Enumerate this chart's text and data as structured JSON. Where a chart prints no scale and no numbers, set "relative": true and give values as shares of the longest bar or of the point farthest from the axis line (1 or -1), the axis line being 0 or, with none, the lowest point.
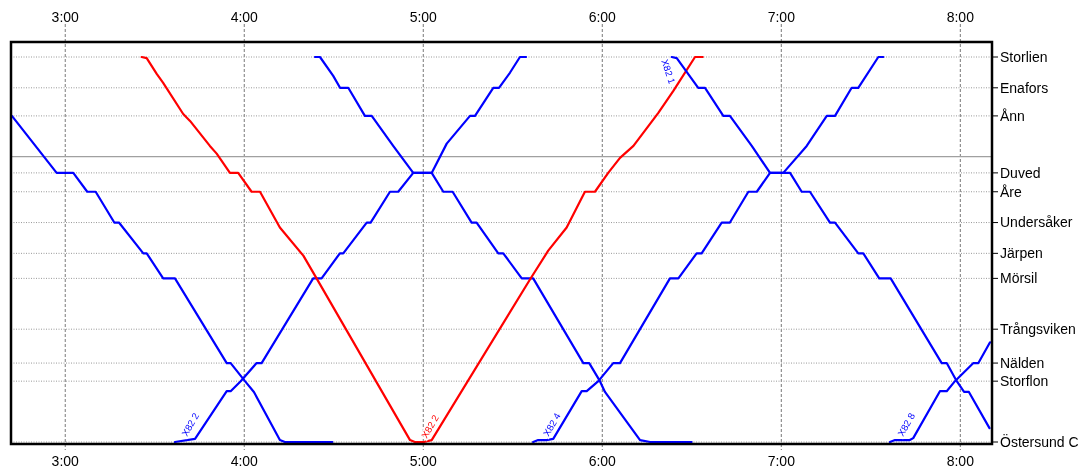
{
  "chart_data": {
    "type": "line",
    "relative": true,
    "xlim": [
      2.697,
      8.177
    ],
    "xticks": [
      {
        "value": 3,
        "label": "3:00"
      },
      {
        "value": 4,
        "label": "4:00"
      },
      {
        "value": 5,
        "label": "5:00"
      },
      {
        "value": 6,
        "label": "6:00"
      },
      {
        "value": 7,
        "label": "7:00"
      },
      {
        "value": 8,
        "label": "8:00"
      }
    ],
    "x2lim": [
      2.697,
      8.177
    ],
    "x2ticks": [
      {
        "value": 3,
        "label": "3:00"
      },
      {
        "value": 4,
        "label": "4:00"
      },
      {
        "value": 5,
        "label": "5:00"
      },
      {
        "value": 6,
        "label": "6:00"
      },
      {
        "value": 7,
        "label": "7:00"
      },
      {
        "value": 8,
        "label": "8:00"
      }
    ],
    "grid": "x",
    "ref_lines": [
      {
        "axis": "y",
        "value": 0,
        "label": "Östersund C",
        "line_style": "dotted",
        "color": "#999999"
      },
      {
        "axis": "y",
        "value": 0.158,
        "label": "Storflon",
        "line_style": "dotted",
        "color": "#999999"
      },
      {
        "axis": "y",
        "value": 0.205,
        "label": "Nälden",
        "line_style": "dotted",
        "color": "#999999"
      },
      {
        "axis": "y",
        "value": 0.293,
        "label": "Trångsviken",
        "line_style": "dotted",
        "color": "#999999"
      },
      {
        "axis": "y",
        "value": 0.425,
        "label": "Mörsil",
        "line_style": "dotted",
        "color": "#999999"
      },
      {
        "axis": "y",
        "value": 0.49,
        "label": "Järpen",
        "line_style": "dotted",
        "color": "#999999"
      },
      {
        "axis": "y",
        "value": 0.57,
        "label": "Undersåker",
        "line_style": "dotted",
        "color": "#999999"
      },
      {
        "axis": "y",
        "value": 0.65,
        "label": "Åre",
        "line_style": "dotted",
        "color": "#999999"
      },
      {
        "axis": "y",
        "value": 0.699,
        "label": "Duved",
        "line_style": "dotted",
        "color": "#999999"
      },
      {
        "axis": "y",
        "value": 0.741,
        "color": "#a0a0a0",
        "line_style": "solid"
      },
      {
        "axis": "y",
        "value": 0.847,
        "label": "Ånn",
        "line_style": "dotted",
        "color": "#999999"
      },
      {
        "axis": "y",
        "value": 0.92,
        "label": "Enafors",
        "line_style": "dotted",
        "color": "#999999"
      },
      {
        "axis": "y",
        "value": 1,
        "label": "Storlien",
        "line_style": "dotted",
        "color": "#999999"
      }
    ],
    "series": [
      {
        "color": "#0000ff",
        "x": [
          2.702,
          2.952,
          3.045,
          3.123,
          3.17,
          3.274,
          3.3,
          3.436,
          3.455,
          3.547,
          3.613,
          3.902,
          3.924,
          4.004,
          4.054,
          4.199,
          4.227,
          4.492
        ],
        "values": [
          0.847,
          0.699,
          0.699,
          0.65,
          0.65,
          0.57,
          0.57,
          0.49,
          0.49,
          0.425,
          0.425,
          0.205,
          0.205,
          0.158,
          0.13,
          0.005,
          0,
          0
        ]
      },
      {
        "color": "#0000ff",
        "x": [
          3.613,
          3.725,
          3.902,
          3.924,
          3.98,
          4.069,
          4.097,
          4.385,
          4.432,
          4.534,
          4.553,
          4.684,
          4.706,
          4.814,
          4.86,
          4.944,
          5.047,
          5.131,
          5.261,
          5.289,
          5.391,
          5.423,
          5.484,
          5.54,
          5.574
        ],
        "values": [
          0,
          0.008,
          0.132,
          0.132,
          0.158,
          0.205,
          0.205,
          0.425,
          0.425,
          0.49,
          0.49,
          0.57,
          0.57,
          0.65,
          0.65,
          0.699,
          0.699,
          0.775,
          0.847,
          0.847,
          0.92,
          0.92,
          0.959,
          1,
          1
        ]
      },
      {
        "color": "#0000ff",
        "x": [
          4.395,
          4.423,
          4.497,
          4.535,
          4.581,
          4.674,
          4.712,
          4.832,
          4.944,
          5.047,
          5.112,
          5.164,
          5.27,
          5.298,
          5.419,
          5.447,
          5.55,
          5.614,
          5.894,
          5.927,
          5.987,
          6.015,
          6.211,
          6.267,
          6.499
        ],
        "values": [
          1,
          1,
          0.951,
          0.92,
          0.92,
          0.847,
          0.847,
          0.769,
          0.699,
          0.699,
          0.65,
          0.65,
          0.57,
          0.57,
          0.49,
          0.49,
          0.425,
          0.425,
          0.205,
          0.205,
          0.158,
          0.13,
          0.005,
          0,
          0
        ]
      },
      {
        "color": "#ff0000",
        "x": [
          3.427,
          3.455,
          3.511,
          3.547,
          3.659,
          3.697,
          3.808,
          3.846,
          3.92,
          3.966,
          4.041,
          4.088,
          4.199,
          4.33,
          4.404,
          4.926,
          4.953,
          5.004,
          5.047,
          5.596,
          5.698,
          5.801,
          5.903,
          5.959,
          6.033,
          6.099,
          6.174,
          6.313,
          6.397,
          6.518,
          6.561
        ],
        "values": [
          1,
          0.997,
          0.956,
          0.933,
          0.852,
          0.834,
          0.769,
          0.749,
          0.699,
          0.699,
          0.65,
          0.65,
          0.557,
          0.484,
          0.425,
          0.005,
          0,
          0,
          0.005,
          0.422,
          0.497,
          0.557,
          0.65,
          0.65,
          0.699,
          0.738,
          0.769,
          0.855,
          0.912,
          1,
          1
        ]
      },
      {
        "color": "#0000ff",
        "x": [
          5.614,
          5.642,
          5.689,
          5.726,
          5.885,
          5.913,
          5.978,
          6.061,
          6.099,
          6.378,
          6.425,
          6.527,
          6.555,
          6.667,
          6.713,
          6.816,
          6.863,
          6.937,
          7.011,
          7.142,
          7.254,
          7.3,
          7.393,
          7.43,
          7.542,
          7.57
        ],
        "values": [
          0,
          0.005,
          0.005,
          0.008,
          0.132,
          0.132,
          0.158,
          0.205,
          0.205,
          0.425,
          0.425,
          0.49,
          0.49,
          0.57,
          0.57,
          0.65,
          0.65,
          0.699,
          0.699,
          0.769,
          0.847,
          0.847,
          0.92,
          0.92,
          1,
          1
        ]
      },
      {
        "color": "#0000ff",
        "x": [
          6.388,
          6.416,
          6.536,
          6.574,
          6.676,
          6.713,
          6.835,
          6.937,
          7.049,
          7.114,
          7.16,
          7.272,
          7.3,
          7.43,
          7.458,
          7.547,
          7.611,
          7.896,
          7.924,
          7.98,
          8.021,
          8.048,
          8.163
        ],
        "values": [
          1,
          0.997,
          0.92,
          0.92,
          0.847,
          0.847,
          0.769,
          0.699,
          0.699,
          0.65,
          0.65,
          0.57,
          0.57,
          0.49,
          0.49,
          0.425,
          0.425,
          0.205,
          0.205,
          0.158,
          0.13,
          0.13,
          0.036
        ]
      },
      {
        "color": "#0000ff",
        "x": [
          7.607,
          7.635,
          7.718,
          7.737,
          7.886,
          7.924,
          7.97,
          8.073,
          8.101,
          8.166
        ],
        "values": [
          0,
          0.005,
          0.005,
          0.01,
          0.132,
          0.132,
          0.158,
          0.205,
          0.205,
          0.259
        ]
      }
    ],
    "annotations": [
      {
        "text": "X82 2",
        "x": 3.68,
        "y": 0.013
      },
      {
        "text": "X82 2",
        "x": 5.02,
        "y": 0.008
      },
      {
        "text": "X82 4",
        "x": 5.7,
        "y": 0.013
      },
      {
        "text": "X82 8",
        "x": 7.68,
        "y": 0.013
      },
      {
        "text": "X82 1",
        "x": 6.33,
        "y": 0.99
      }
    ]
  }
}
